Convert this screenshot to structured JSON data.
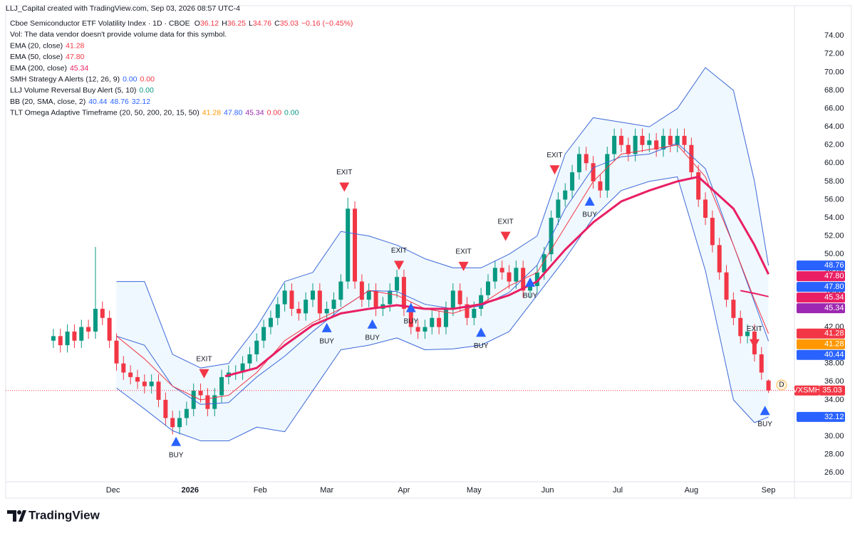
{
  "chart_data": {
    "type": "candlestick",
    "title": "LLJ_Capital created with TradingView.com, Sep 03, 2026 08:57 UTC-4",
    "brand": "TradingView",
    "legend": [
      {
        "label": "Cboe Semiconductor ETF Volatility Index · 1D · CBOE",
        "values": [
          {
            "prefix": "O",
            "text": "36.12",
            "color": "#f23645"
          },
          {
            "prefix": "H",
            "text": "36.25",
            "color": "#f23645"
          },
          {
            "prefix": "L",
            "text": "34.76",
            "color": "#f23645"
          },
          {
            "prefix": "C",
            "text": "35.03",
            "color": "#f23645"
          },
          {
            "prefix": "",
            "text": "−0.16 (−0.45%)",
            "color": "#f23645"
          }
        ]
      },
      {
        "label": "Vol: The data vendor doesn't provide volume data for this symbol.",
        "values": []
      },
      {
        "label": "EMA (20, close)",
        "values": [
          {
            "prefix": "",
            "text": "41.28",
            "color": "#f23645"
          }
        ]
      },
      {
        "label": "EMA (50, close)",
        "values": [
          {
            "prefix": "",
            "text": "47.80",
            "color": "#f23645"
          }
        ]
      },
      {
        "label": "EMA (200, close)",
        "values": [
          {
            "prefix": "",
            "text": "45.34",
            "color": "#e91e63"
          }
        ]
      },
      {
        "label": "SMH Strategy A Alerts (12, 26, 9)",
        "values": [
          {
            "prefix": "",
            "text": "0.00",
            "color": "#2962ff"
          },
          {
            "prefix": "",
            "text": "0.00",
            "color": "#f23645"
          }
        ]
      },
      {
        "label": "LLJ Volume Reversal Buy Alert (5, 10)",
        "values": [
          {
            "prefix": "",
            "text": "0.00",
            "color": "#089981"
          }
        ]
      },
      {
        "label": "BB (20, SMA, close, 2)",
        "values": [
          {
            "prefix": "",
            "text": "40.44",
            "color": "#2962ff"
          },
          {
            "prefix": "",
            "text": "48.76",
            "color": "#2962ff"
          },
          {
            "prefix": "",
            "text": "32.12",
            "color": "#2962ff"
          }
        ]
      },
      {
        "label": "TLT Omega Adaptive Timeframe (20, 50, 200, 20, 15, 50)",
        "values": [
          {
            "prefix": "",
            "text": "41.28",
            "color": "#ff9800"
          },
          {
            "prefix": "",
            "text": "47.80",
            "color": "#2962ff"
          },
          {
            "prefix": "",
            "text": "45.34",
            "color": "#9c27b0"
          },
          {
            "prefix": "",
            "text": "0.00",
            "color": "#f23645"
          },
          {
            "prefix": "",
            "text": "0.00",
            "color": "#089981"
          }
        ]
      }
    ],
    "up_color": "#089981",
    "down_color": "#f23645",
    "x": [
      0,
      2,
      4,
      6,
      8,
      10,
      12,
      14,
      16,
      18,
      20,
      22,
      24,
      26,
      28,
      30,
      32,
      34,
      36,
      38,
      40,
      42,
      44,
      46,
      48,
      50,
      52,
      54,
      56,
      58,
      60,
      62,
      64,
      66,
      68,
      70,
      72,
      74,
      76,
      78,
      80,
      82,
      84,
      86,
      88,
      90,
      92,
      94,
      96,
      98,
      100,
      102,
      104,
      106,
      108,
      110,
      112,
      114,
      116,
      118,
      120,
      122,
      124,
      126,
      128,
      130,
      132,
      134,
      136,
      138,
      140,
      142,
      144,
      146,
      148,
      150,
      152,
      154,
      156,
      158,
      160,
      162,
      164,
      166,
      168,
      170,
      172,
      174,
      176,
      178,
      180,
      182,
      184,
      186,
      188,
      190,
      192,
      194,
      196,
      198,
      200,
      202,
      204
    ],
    "open": [
      40.5,
      41,
      40,
      41.5,
      40.5,
      42,
      41.5,
      44,
      43,
      40.5,
      38,
      37,
      36.5,
      36,
      35.5,
      36,
      34,
      32,
      31,
      32,
      33,
      35,
      34.5,
      33,
      34.5,
      36.5,
      37,
      37,
      38,
      39,
      40.5,
      42,
      43,
      44.5,
      46,
      44,
      43.5,
      45,
      46,
      43.5,
      44,
      45,
      47,
      55,
      47,
      45,
      46,
      44,
      44.5,
      46,
      47.5,
      44,
      42,
      41.5,
      42,
      43,
      42,
      44,
      46,
      44.5,
      43,
      44,
      45.5,
      47,
      48.5,
      48,
      47,
      48.5,
      46,
      46.5,
      48,
      50,
      54,
      56,
      57,
      59,
      61,
      60,
      58,
      57,
      61,
      63,
      62,
      61,
      63,
      62,
      62.5,
      61.5,
      63,
      62,
      63,
      62,
      59,
      56,
      54,
      51,
      48,
      45,
      43,
      41,
      41.5,
      39,
      36.12
    ],
    "high": [
      41.8,
      41.8,
      42.3,
      42.3,
      42.8,
      42.8,
      50.8,
      44.8,
      43.8,
      41.3,
      38.8,
      37.8,
      37.3,
      36.8,
      36.8,
      36.8,
      34.8,
      32.8,
      32.8,
      33.8,
      35.8,
      35.8,
      35.3,
      35.3,
      37.3,
      37.8,
      37.8,
      38.8,
      39.8,
      41.3,
      42.8,
      43.8,
      45.3,
      46.8,
      46.8,
      44.8,
      45.8,
      46.8,
      46.8,
      44.8,
      45.8,
      47.8,
      56.2,
      55.8,
      47.8,
      46.8,
      46.8,
      45.3,
      46.8,
      48.3,
      48.3,
      44.8,
      42.8,
      42.8,
      43.8,
      43.8,
      44.8,
      46.8,
      46.8,
      45.3,
      44.8,
      46.3,
      47.8,
      49.3,
      49.3,
      48.8,
      49.3,
      49.3,
      47.3,
      48.8,
      50.8,
      54.8,
      56.8,
      57.8,
      59.8,
      61.8,
      61.8,
      60.8,
      58.8,
      61.8,
      63.8,
      63.8,
      62.8,
      63.8,
      63.8,
      63.3,
      63.3,
      63.8,
      63.8,
      63.8,
      63.8,
      62.8,
      59.8,
      56.8,
      54.8,
      51.8,
      48.8,
      45.8,
      43.8,
      42.3,
      42.3,
      39.8,
      36.25
    ],
    "low": [
      39.7,
      39.2,
      39.2,
      39.7,
      39.7,
      40.7,
      40.7,
      42.2,
      39.7,
      37.2,
      36.2,
      35.7,
      35.2,
      34.7,
      34.7,
      33.2,
      31.2,
      30.2,
      30.2,
      31.2,
      32.2,
      33.7,
      32.2,
      32.2,
      33.7,
      35.7,
      36.2,
      36.2,
      37.2,
      38.2,
      39.7,
      41.2,
      42.2,
      43.7,
      43.2,
      42.7,
      42.7,
      44.2,
      42.7,
      42.7,
      43.2,
      44.2,
      46.2,
      46.2,
      44.2,
      44.2,
      43.2,
      43.2,
      43.7,
      45.2,
      43.2,
      41.2,
      40.7,
      40.7,
      41.2,
      41.2,
      41.2,
      43.2,
      43.7,
      42.2,
      42.2,
      43.2,
      44.7,
      46.2,
      47.2,
      46.2,
      46.2,
      45.2,
      45.2,
      45.7,
      47.2,
      49.2,
      53.2,
      55.2,
      56.2,
      58.2,
      59.2,
      57.2,
      56.2,
      56.2,
      60.2,
      61.2,
      60.2,
      60.2,
      61.2,
      61.2,
      60.7,
      60.7,
      61.2,
      61.2,
      61.2,
      58.2,
      55.2,
      53.2,
      50.2,
      47.2,
      44.2,
      42.2,
      40.2,
      40.2,
      38.2,
      36.2,
      34.76
    ],
    "close": [
      41,
      40,
      41.5,
      40.5,
      42,
      41.5,
      44,
      43,
      40.5,
      38,
      37,
      36.5,
      36,
      35.5,
      36,
      34,
      32,
      31,
      32,
      33,
      35,
      34.5,
      33,
      34.5,
      36.5,
      37,
      37,
      38,
      39,
      40.5,
      42,
      43,
      44.5,
      46,
      44,
      43.5,
      45,
      46,
      43.5,
      44,
      45,
      47,
      55,
      47,
      45,
      46,
      44,
      44.5,
      46,
      47.5,
      44,
      42,
      41.5,
      42,
      43,
      42,
      44,
      46,
      44.5,
      43,
      44,
      45.5,
      47,
      48.5,
      48,
      47,
      48.5,
      46,
      46.5,
      48,
      50,
      54,
      56,
      57,
      59,
      61,
      60,
      58,
      57,
      61,
      63,
      62,
      61,
      63,
      62,
      62.5,
      61.5,
      63,
      62,
      63,
      62,
      59,
      56,
      54,
      51,
      48,
      45,
      43,
      41,
      41.5,
      39,
      37,
      35.03
    ],
    "band_fill_color": "rgba(33,150,243,0.07)",
    "overlays": [
      {
        "color": "#3d68d8",
        "width": 1,
        "x": [
          18,
          26,
          34,
          42,
          50,
          58,
          66,
          74,
          82,
          90,
          98,
          106,
          114,
          122,
          130,
          138,
          146,
          154,
          162,
          170,
          178,
          186,
          194,
          200,
          204
        ],
        "values": [
          47,
          47,
          39,
          37.5,
          38,
          42,
          47,
          48,
          52.5,
          52,
          51,
          49.5,
          48.5,
          48.5,
          50,
          52,
          61,
          65,
          64.5,
          64,
          66,
          70.5,
          68,
          58,
          48.76
        ]
      },
      {
        "color": "#3d68d8",
        "width": 1,
        "x": [
          18,
          26,
          34,
          42,
          50,
          58,
          66,
          74,
          82,
          90,
          98,
          106,
          114,
          122,
          130,
          138,
          146,
          154,
          162,
          170,
          178,
          186,
          194,
          200,
          204
        ],
        "values": [
          35.3,
          33,
          30.6,
          29.5,
          29.5,
          31,
          30.5,
          35,
          39.5,
          40,
          40.8,
          39.5,
          39.6,
          40,
          41.5,
          45.5,
          49.5,
          54,
          57,
          58,
          58.5,
          48.2,
          34,
          31.5,
          32.12
        ]
      },
      {
        "color": "#3d68d8",
        "width": 1,
        "x": [
          18,
          26,
          34,
          42,
          50,
          58,
          66,
          74,
          82,
          90,
          98,
          106,
          114,
          122,
          130,
          138,
          146,
          154,
          162,
          170,
          178,
          186,
          194,
          200,
          204
        ],
        "values": [
          41,
          40,
          35.5,
          33.5,
          33.7,
          36.5,
          38.8,
          41.5,
          44,
          46,
          45.9,
          44.5,
          44,
          44.3,
          45.8,
          48.8,
          55,
          59.5,
          60.7,
          61,
          62.2,
          59.4,
          51,
          44.7,
          40.44
        ]
      },
      {
        "color": "#f23645",
        "width": 1,
        "x": [
          18,
          26,
          34,
          42,
          50,
          58,
          66,
          74,
          82,
          90,
          98,
          106,
          114,
          122,
          130,
          138,
          146,
          154,
          162,
          170,
          178,
          186,
          194,
          200,
          204
        ],
        "values": [
          41,
          38.5,
          35.5,
          34,
          34.5,
          37,
          40.5,
          42.5,
          44,
          46,
          45.5,
          44,
          43.5,
          44.5,
          46.5,
          48,
          53,
          58,
          61,
          61.5,
          62,
          58.5,
          51,
          45,
          41.28
        ]
      },
      {
        "color": "#e91e63",
        "width": 3,
        "x": [
          49,
          58,
          66,
          74,
          82,
          90,
          98,
          106,
          114,
          122,
          130,
          138,
          146,
          154,
          162,
          170,
          178,
          184,
          194,
          200,
          204
        ],
        "values": [
          36.6,
          37.5,
          40,
          42.2,
          43.5,
          44,
          44.4,
          44,
          44,
          44.5,
          45.5,
          47,
          50.5,
          53.5,
          55.8,
          57,
          58,
          58.5,
          55,
          51,
          47.8
        ]
      },
      {
        "color": "#e91e63",
        "width": 2,
        "x": [
          196,
          200,
          204
        ],
        "values": [
          46,
          45.7,
          45.34
        ]
      }
    ],
    "signals": [
      {
        "label": "EXIT",
        "x": 43,
        "value": 36.9
      },
      {
        "label": "EXIT",
        "x": 83,
        "value": 57.4
      },
      {
        "label": "EXIT",
        "x": 98.6,
        "value": 48.8
      },
      {
        "label": "EXIT",
        "x": 117,
        "value": 48.7
      },
      {
        "label": "EXIT",
        "x": 129,
        "value": 52.0
      },
      {
        "label": "EXIT",
        "x": 143,
        "value": 59.3
      },
      {
        "label": "EXIT",
        "x": 200,
        "value": 40.2
      },
      {
        "label": "BUY",
        "x": 35,
        "value": 29.4
      },
      {
        "label": "BUY",
        "x": 78,
        "value": 41.9
      },
      {
        "label": "BUY",
        "x": 91,
        "value": 42.3
      },
      {
        "label": "BUY",
        "x": 102,
        "value": 44.1
      },
      {
        "label": "BUY",
        "x": 122,
        "value": 41.4
      },
      {
        "label": "BUY",
        "x": 136,
        "value": 46.9
      },
      {
        "label": "BUY",
        "x": 153,
        "value": 55.8
      },
      {
        "label": "BUY",
        "x": 203,
        "value": 32.8
      }
    ],
    "xlim": [
      -13.6,
      211.4
    ],
    "xticks": [
      {
        "value": 17,
        "label": "Dec"
      },
      {
        "value": 39,
        "label": "2026"
      },
      {
        "value": 59,
        "label": "Feb"
      },
      {
        "value": 78,
        "label": "Mar"
      },
      {
        "value": 100,
        "label": "Apr"
      },
      {
        "value": 120,
        "label": "May"
      },
      {
        "value": 141,
        "label": "Jun"
      },
      {
        "value": 161,
        "label": "Jul"
      },
      {
        "value": 182,
        "label": "Aug"
      },
      {
        "value": 204,
        "label": "Sep"
      }
    ],
    "ylim": [
      25.0,
      77.3
    ],
    "yticks": [
      {
        "value": 26,
        "label": "26.00"
      },
      {
        "value": 28,
        "label": "28.00"
      },
      {
        "value": 30,
        "label": "30.00"
      },
      {
        "value": 32,
        "label": "32.00"
      },
      {
        "value": 34,
        "label": "34.00"
      },
      {
        "value": 36,
        "label": "36.00"
      },
      {
        "value": 38,
        "label": "38.00"
      },
      {
        "value": 40,
        "label": "40.00"
      },
      {
        "value": 42,
        "label": "42.00"
      },
      {
        "value": 44,
        "label": "44.00"
      },
      {
        "value": 46,
        "label": "46.00"
      },
      {
        "value": 48,
        "label": "48.00"
      },
      {
        "value": 50,
        "label": "50.00"
      },
      {
        "value": 52,
        "label": "52.00"
      },
      {
        "value": 54,
        "label": "54.00"
      },
      {
        "value": 56,
        "label": "56.00"
      },
      {
        "value": 58,
        "label": "58.00"
      },
      {
        "value": 60,
        "label": "60.00"
      },
      {
        "value": 62,
        "label": "62.00"
      },
      {
        "value": 64,
        "label": "64.00"
      },
      {
        "value": 66,
        "label": "66.00"
      },
      {
        "value": 68,
        "label": "68.00"
      },
      {
        "value": 70,
        "label": "70.00"
      },
      {
        "value": 72,
        "label": "72.00"
      },
      {
        "value": 74,
        "label": "74.00"
      }
    ],
    "grid": false,
    "price_tags": [
      {
        "value": 48.76,
        "label": "48.76",
        "color": "#2962ff"
      },
      {
        "value": 47.8,
        "label": "47.80",
        "color": "#e91e63"
      },
      {
        "value": 47.8,
        "label": "47.80",
        "color": "#2962ff"
      },
      {
        "value": 45.34,
        "label": "45.34",
        "color": "#e91e63"
      },
      {
        "value": 45.34,
        "label": "45.34",
        "color": "#9c27b0"
      },
      {
        "value": 41.28,
        "label": "41.28",
        "color": "#f23645"
      },
      {
        "value": 41.28,
        "label": "41.28",
        "color": "#ff9800"
      },
      {
        "value": 40.44,
        "label": "40.44",
        "color": "#2962ff"
      },
      {
        "name": "VXSMH",
        "value": 35.03,
        "label": "35.03",
        "color": "#f23645"
      },
      {
        "value": 32.12,
        "label": "32.12",
        "color": "#2962ff"
      }
    ],
    "session_marker": "D"
  }
}
